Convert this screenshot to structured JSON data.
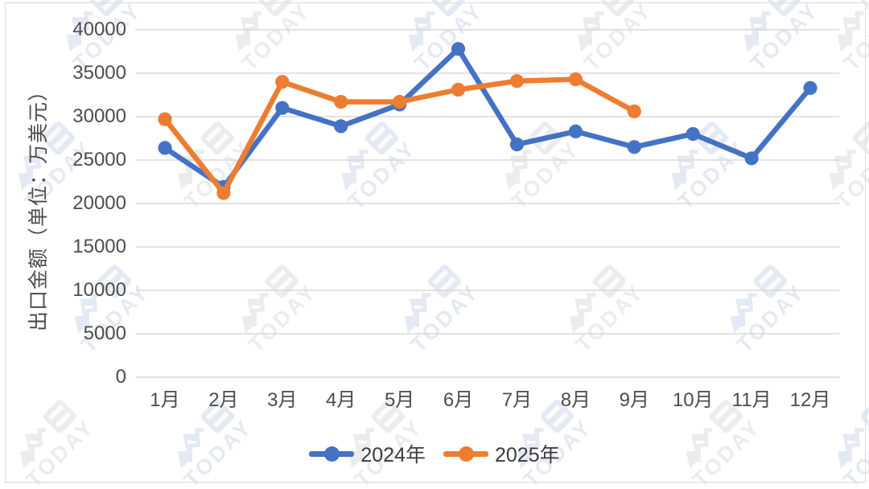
{
  "chart_data": {
    "type": "line",
    "categories": [
      "1月",
      "2月",
      "3月",
      "4月",
      "5月",
      "6月",
      "7月",
      "8月",
      "9月",
      "10月",
      "11月",
      "12月"
    ],
    "series": [
      {
        "name": "2024年",
        "color": "#4472C4",
        "values": [
          26400,
          21900,
          31000,
          28900,
          31400,
          37800,
          26800,
          28300,
          26500,
          28000,
          25200,
          33300
        ]
      },
      {
        "name": "2025年",
        "color": "#ED7D31",
        "values": [
          29700,
          21200,
          34000,
          31700,
          31700,
          33100,
          34100,
          34300,
          30600
        ]
      }
    ],
    "title": "",
    "xlabel": "",
    "ylabel": "出口金额（单位：万美元）",
    "ylim": [
      0,
      40000
    ],
    "ytick_step": 5000,
    "grid": true,
    "legend_position": "bottom",
    "marker": "circle"
  },
  "style": {
    "gridline_color": "#d8d8d8",
    "tick_label_color": "#4c4c4c",
    "background": "#ffffff",
    "border_color": "#dcdcdc"
  },
  "watermark": {
    "text": "TODAY",
    "tint_blue": "#c5cfe6",
    "tint_gray": "#d6d6da"
  }
}
